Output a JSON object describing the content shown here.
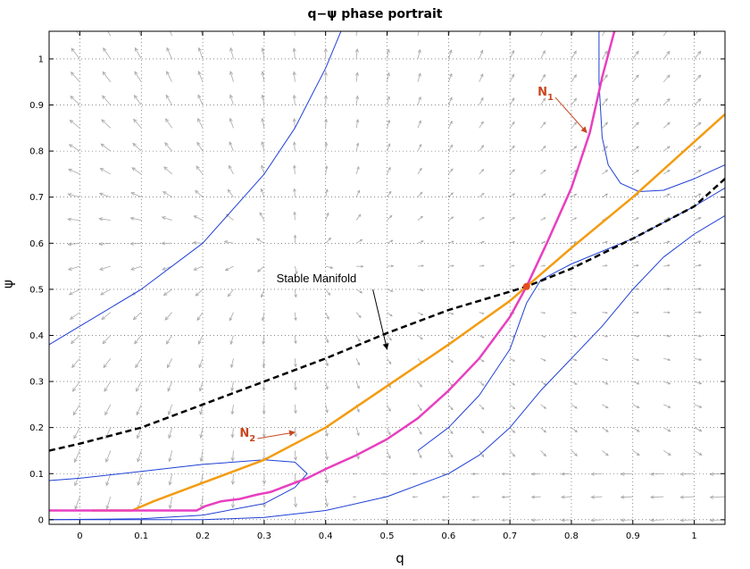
{
  "chart_data": {
    "type": "line",
    "title": "q−ψ phase portrait",
    "xlabel": "q",
    "ylabel": "ψ",
    "xlim": [
      -0.05,
      1.05
    ],
    "ylim": [
      -0.01,
      1.06
    ],
    "xticks": [
      "0",
      "0.1",
      "0.2",
      "0.3",
      "0.4",
      "0.5",
      "0.6",
      "0.7",
      "0.8",
      "0.9",
      "1"
    ],
    "yticks": [
      "0",
      "0.1",
      "0.2",
      "0.3",
      "0.4",
      "0.5",
      "0.6",
      "0.7",
      "0.8",
      "0.9",
      "1"
    ],
    "grid": true,
    "colors": {
      "N1": "#e83fbf",
      "N2": "#f39c12",
      "stable_manifold": "#000000",
      "trajectories": "#1f3fd6",
      "field_arrows": "#a8a8a8",
      "annotation": "#c8461e",
      "equilibrium": "#e74c1c"
    },
    "equilibrium": {
      "q": 0.727,
      "psi": 0.506
    },
    "series": [
      {
        "key": "N1",
        "label_main": "N",
        "label_sub": "1",
        "style": "solid-thick",
        "points": [
          [
            -0.05,
            0.02
          ],
          [
            -0.025,
            0.02
          ],
          [
            0.02,
            0.02
          ],
          [
            0.19,
            0.02
          ],
          [
            0.205,
            0.03
          ],
          [
            0.23,
            0.04
          ],
          [
            0.26,
            0.045
          ],
          [
            0.29,
            0.055
          ],
          [
            0.31,
            0.06
          ],
          [
            0.34,
            0.075
          ],
          [
            0.37,
            0.09
          ],
          [
            0.4,
            0.11
          ],
          [
            0.45,
            0.14
          ],
          [
            0.5,
            0.175
          ],
          [
            0.55,
            0.22
          ],
          [
            0.6,
            0.28
          ],
          [
            0.65,
            0.35
          ],
          [
            0.7,
            0.44
          ],
          [
            0.727,
            0.506
          ],
          [
            0.76,
            0.6
          ],
          [
            0.8,
            0.72
          ],
          [
            0.83,
            0.84
          ],
          [
            0.85,
            0.96
          ],
          [
            0.87,
            1.06
          ]
        ]
      },
      {
        "key": "N2",
        "label_main": "N",
        "label_sub": "2",
        "style": "solid-thick",
        "points": [
          [
            0.02,
            0.02
          ],
          [
            0.085,
            0.02
          ],
          [
            0.12,
            0.04
          ],
          [
            0.2,
            0.08
          ],
          [
            0.3,
            0.13
          ],
          [
            0.4,
            0.2
          ],
          [
            0.5,
            0.29
          ],
          [
            0.6,
            0.38
          ],
          [
            0.7,
            0.475
          ],
          [
            0.727,
            0.506
          ],
          [
            0.8,
            0.59
          ],
          [
            0.9,
            0.7
          ],
          [
            1.0,
            0.82
          ],
          [
            1.05,
            0.88
          ]
        ]
      },
      {
        "key": "stable_manifold",
        "label": "Stable Manifold",
        "style": "dashed",
        "points": [
          [
            -0.05,
            0.15
          ],
          [
            0.0,
            0.165
          ],
          [
            0.1,
            0.2
          ],
          [
            0.2,
            0.25
          ],
          [
            0.3,
            0.3
          ],
          [
            0.4,
            0.35
          ],
          [
            0.5,
            0.405
          ],
          [
            0.6,
            0.455
          ],
          [
            0.7,
            0.495
          ],
          [
            0.727,
            0.506
          ],
          [
            0.8,
            0.545
          ],
          [
            0.9,
            0.61
          ],
          [
            1.0,
            0.68
          ],
          [
            1.05,
            0.74
          ]
        ]
      },
      {
        "key": "trajectory_upper_left",
        "style": "thin",
        "points": [
          [
            -0.05,
            0.38
          ],
          [
            0.0,
            0.42
          ],
          [
            0.1,
            0.5
          ],
          [
            0.2,
            0.6
          ],
          [
            0.3,
            0.75
          ],
          [
            0.35,
            0.85
          ],
          [
            0.4,
            0.98
          ],
          [
            0.425,
            1.06
          ]
        ]
      },
      {
        "key": "trajectory_upper_right",
        "style": "thin",
        "points": [
          [
            0.845,
            1.06
          ],
          [
            0.845,
            0.95
          ],
          [
            0.85,
            0.83
          ],
          [
            0.86,
            0.77
          ],
          [
            0.88,
            0.73
          ],
          [
            0.91,
            0.712
          ],
          [
            0.95,
            0.715
          ],
          [
            1.0,
            0.74
          ],
          [
            1.05,
            0.77
          ]
        ]
      },
      {
        "key": "trajectory_loop",
        "style": "thin",
        "points": [
          [
            -0.05,
            0.085
          ],
          [
            0.0,
            0.09
          ],
          [
            0.1,
            0.105
          ],
          [
            0.2,
            0.12
          ],
          [
            0.3,
            0.13
          ],
          [
            0.35,
            0.125
          ],
          [
            0.37,
            0.1
          ],
          [
            0.35,
            0.07
          ],
          [
            0.3,
            0.035
          ],
          [
            0.2,
            0.01
          ],
          [
            0.1,
            0.002
          ],
          [
            -0.05,
            0.0
          ]
        ]
      },
      {
        "key": "trajectory_lower_right",
        "style": "thin",
        "points": [
          [
            0.55,
            0.15
          ],
          [
            0.6,
            0.2
          ],
          [
            0.65,
            0.27
          ],
          [
            0.7,
            0.37
          ],
          [
            0.727,
            0.47
          ],
          [
            0.75,
            0.52
          ],
          [
            0.8,
            0.555
          ],
          [
            0.9,
            0.61
          ],
          [
            1.0,
            0.68
          ],
          [
            1.05,
            0.72
          ]
        ]
      },
      {
        "key": "trajectory_bottom",
        "style": "thin",
        "points": [
          [
            -0.05,
            0.0
          ],
          [
            0.2,
            0.0
          ],
          [
            0.3,
            0.005
          ],
          [
            0.4,
            0.02
          ],
          [
            0.5,
            0.05
          ],
          [
            0.6,
            0.1
          ],
          [
            0.65,
            0.14
          ],
          [
            0.7,
            0.2
          ],
          [
            0.75,
            0.28
          ],
          [
            0.8,
            0.35
          ],
          [
            0.85,
            0.42
          ],
          [
            0.9,
            0.5
          ],
          [
            0.95,
            0.57
          ],
          [
            1.0,
            0.62
          ],
          [
            1.05,
            0.66
          ]
        ]
      }
    ],
    "annotations": [
      {
        "key": "stable_manifold_text",
        "text": "Stable Manifold",
        "q": 0.32,
        "psi": 0.515,
        "arrow_to": [
          0.5,
          0.37
        ]
      },
      {
        "key": "n1_label",
        "text_main": "N",
        "text_sub": "1",
        "q": 0.745,
        "psi": 0.92,
        "arrow_to": [
          0.825,
          0.84
        ]
      },
      {
        "key": "n2_label",
        "text_main": "N",
        "text_sub": "2",
        "q": 0.26,
        "psi": 0.18,
        "arrow_to": [
          0.35,
          0.19
        ]
      }
    ]
  }
}
